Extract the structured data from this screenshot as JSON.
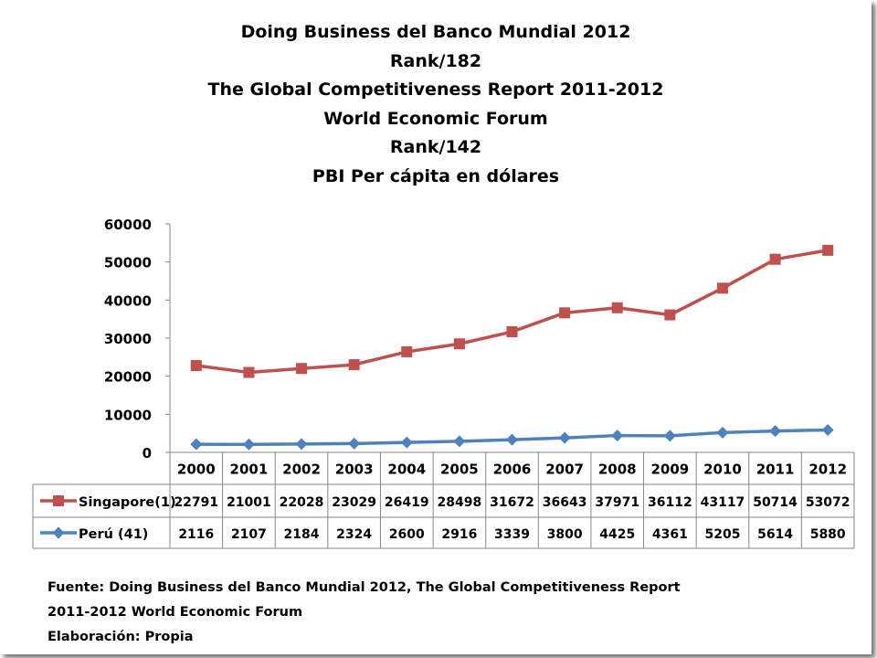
{
  "title_lines": [
    "Doing Business del Banco Mundial 2012",
    "Rank/182",
    "The Global Competitiveness Report 2011-2012",
    "World Economic Forum",
    "Rank/142",
    "PBI Per cápita en dólares"
  ],
  "chart_data": {
    "type": "line",
    "categories": [
      "2000",
      "2001",
      "2002",
      "2003",
      "2004",
      "2005",
      "2006",
      "2007",
      "2008",
      "2009",
      "2010",
      "2011",
      "2012"
    ],
    "ylim": [
      0,
      60000
    ],
    "yticks": [
      "0",
      "10000",
      "20000",
      "30000",
      "40000",
      "50000",
      "60000"
    ],
    "grid": false,
    "legend": "data-table-left",
    "series": [
      {
        "name": "Singapore(1)",
        "color": "#c0504d",
        "marker": "square",
        "values": [
          22791,
          21001,
          22028,
          23029,
          26419,
          28498,
          31672,
          36643,
          37971,
          36112,
          43117,
          50714,
          53072
        ]
      },
      {
        "name": "Perú (41)",
        "color": "#4f81bd",
        "marker": "diamond",
        "values": [
          2116,
          2107,
          2184,
          2324,
          2600,
          2916,
          3339,
          3800,
          4425,
          4361,
          5205,
          5614,
          5880
        ]
      }
    ]
  },
  "footer_lines": [
    "Fuente: Doing Business del Banco Mundial 2012, The Global Competitiveness Report",
    "2011-2012 World Economic Forum",
    "Elaboración: Propia"
  ]
}
